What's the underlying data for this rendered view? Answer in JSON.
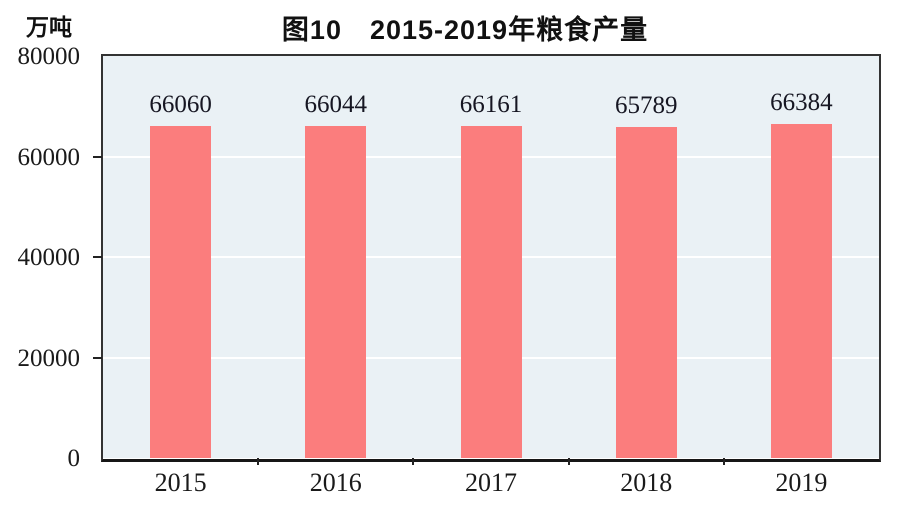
{
  "header": {
    "title": "图10　2015-2019年粮食产量",
    "unit_label": "万吨"
  },
  "chart_data": {
    "type": "bar",
    "title": "图10　2015-2019年粮食产量",
    "ylabel_unit": "万吨",
    "categories": [
      "2015",
      "2016",
      "2017",
      "2018",
      "2019"
    ],
    "series": [
      {
        "name": "粮食产量",
        "values": [
          66060,
          66044,
          66161,
          65789,
          66384
        ],
        "data_labels": [
          "66060",
          "66044",
          "66161",
          "65789",
          "66384"
        ]
      }
    ],
    "ylim": [
      0,
      80000
    ],
    "yticks": [
      0,
      20000,
      40000,
      60000,
      80000
    ],
    "gridlines": [
      20000,
      40000,
      60000
    ],
    "grid": "horizontal",
    "legend": "none",
    "colors": {
      "bar_fill": "#fb7d7d",
      "plot_background": "#eaf1f5",
      "gridline": "#ffffff",
      "axis_border": "#333333",
      "text": "#1a1a1a"
    }
  }
}
